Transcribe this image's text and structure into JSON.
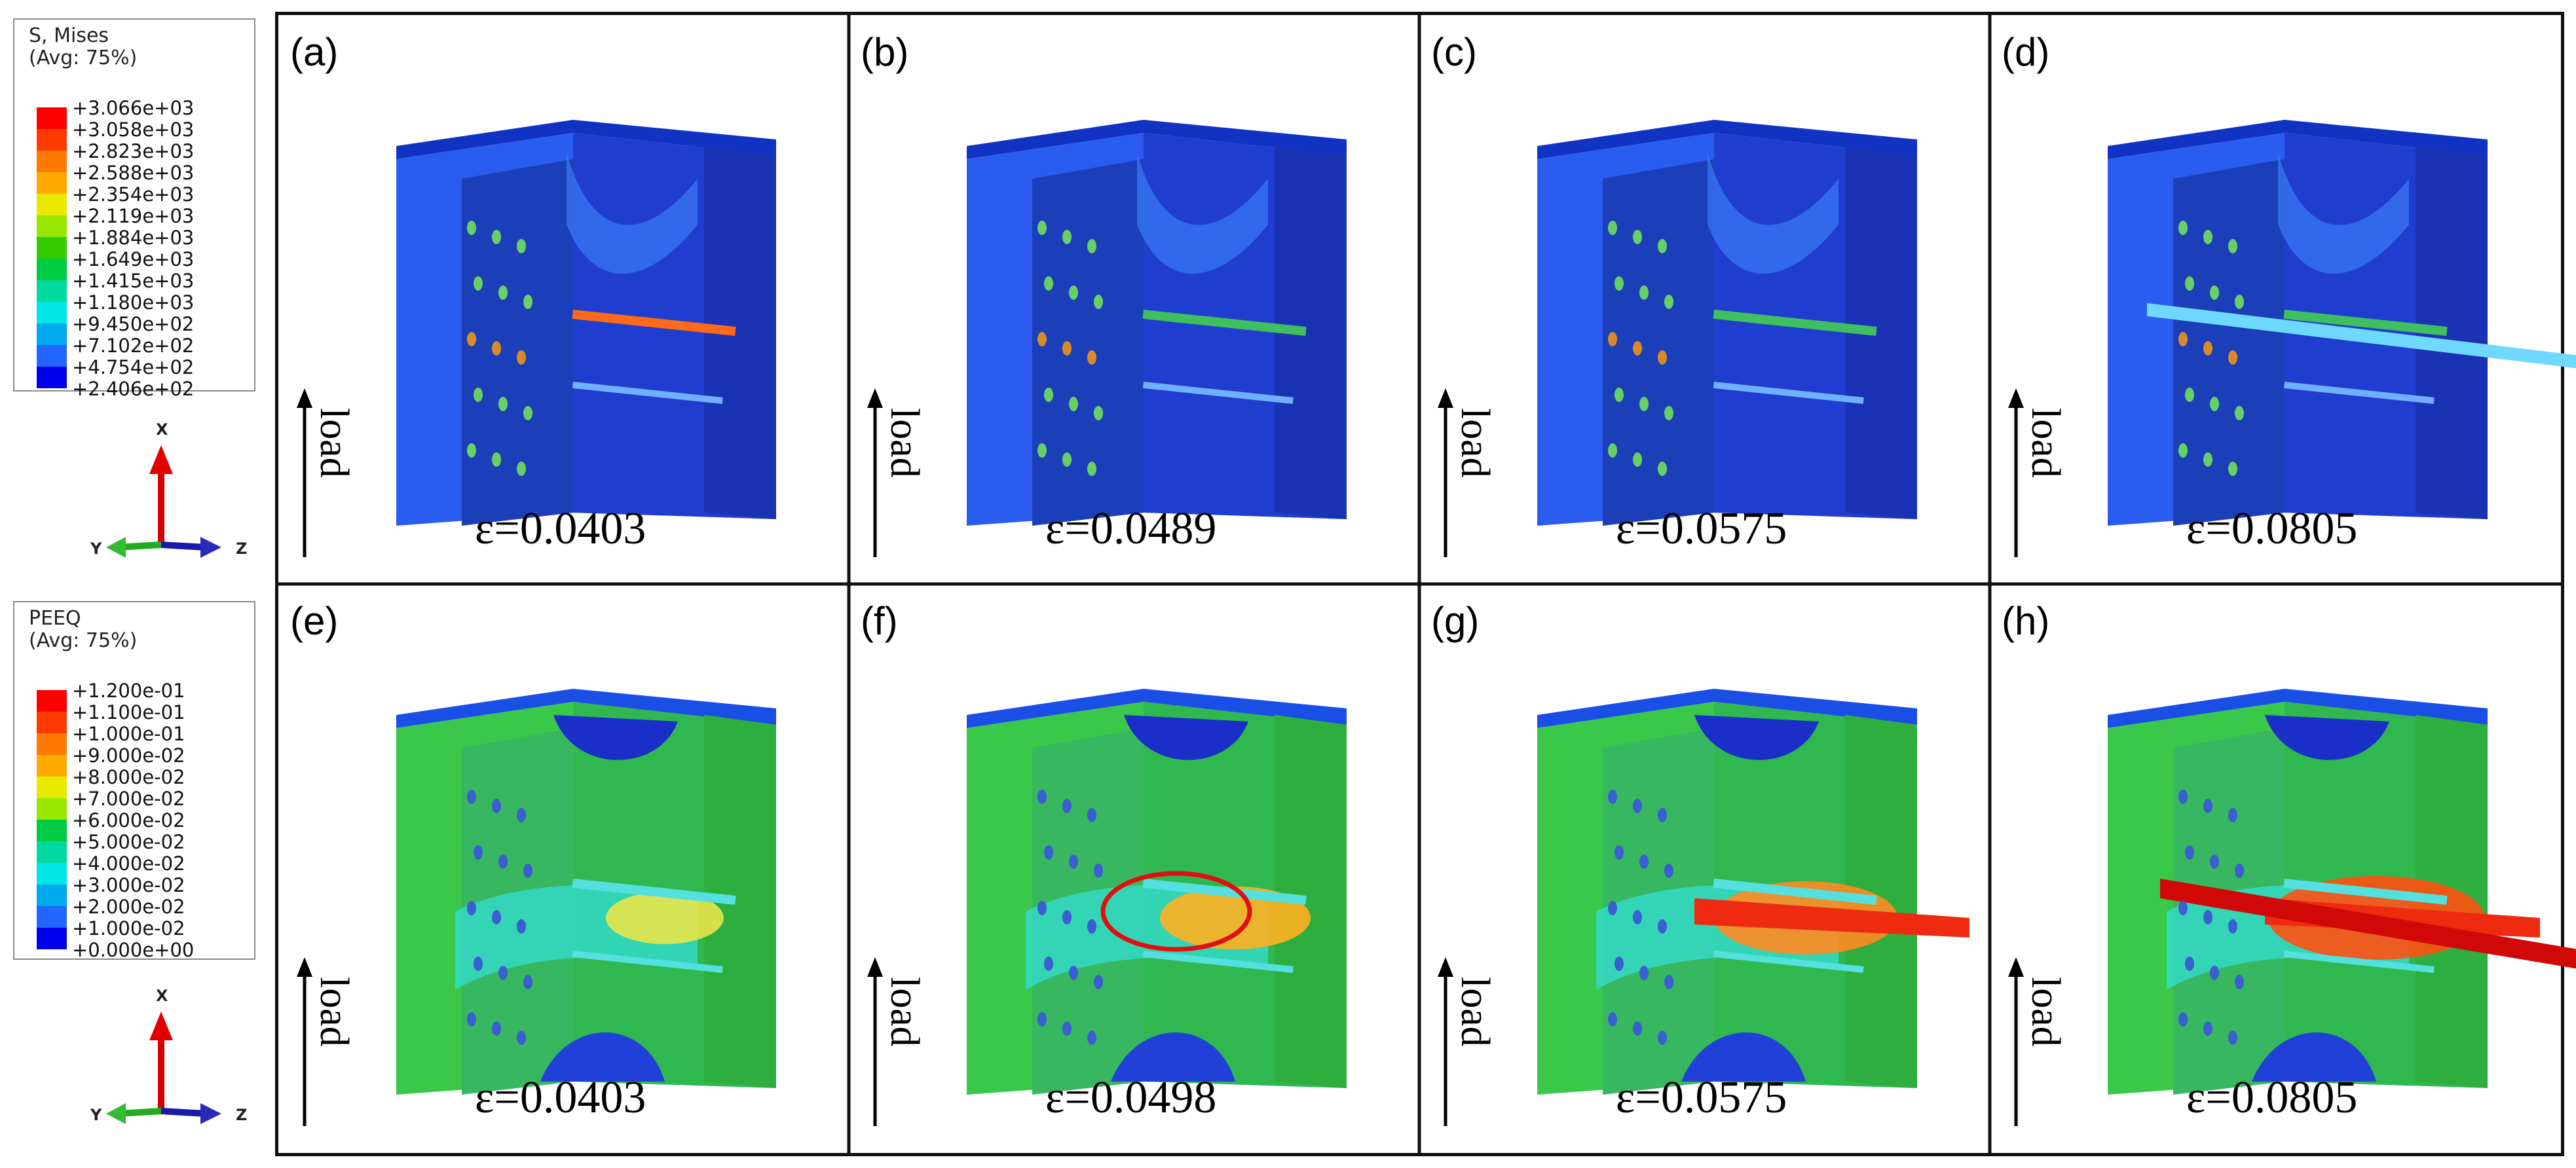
{
  "legend_mises": {
    "title1": "S, Mises",
    "title2": "(Avg: 75%)",
    "values": [
      "+3.066e+03",
      "+3.058e+03",
      "+2.823e+03",
      "+2.588e+03",
      "+2.354e+03",
      "+2.119e+03",
      "+1.884e+03",
      "+1.649e+03",
      "+1.415e+03",
      "+1.180e+03",
      "+9.450e+02",
      "+7.102e+02",
      "+4.754e+02",
      "+2.406e+02"
    ]
  },
  "legend_peeq": {
    "title1": "PEEQ",
    "title2": "(Avg: 75%)",
    "values": [
      "+1.200e-01",
      "+1.100e-01",
      "+1.000e-01",
      "+9.000e-02",
      "+8.000e-02",
      "+7.000e-02",
      "+6.000e-02",
      "+5.000e-02",
      "+4.000e-02",
      "+3.000e-02",
      "+2.000e-02",
      "+1.000e-02",
      "+0.000e+00"
    ]
  },
  "legend_colors": [
    "#ff0000",
    "#ff3a00",
    "#ff7a00",
    "#ffaa00",
    "#e8e800",
    "#99e600",
    "#33cc00",
    "#00cc44",
    "#00d9a0",
    "#00e5e5",
    "#00aaee",
    "#2266ff",
    "#0000ee"
  ],
  "triad": {
    "x": "X",
    "y": "Y",
    "z": "Z"
  },
  "panels": [
    {
      "letter": "(a)",
      "strain": "ε=0.0403",
      "load": "load"
    },
    {
      "letter": "(b)",
      "strain": "ε=0.0489",
      "load": "load"
    },
    {
      "letter": "(c)",
      "strain": "ε=0.0575",
      "load": "load"
    },
    {
      "letter": "(d)",
      "strain": "ε=0.0805",
      "load": "load"
    },
    {
      "letter": "(e)",
      "strain": "ε=0.0403",
      "load": "load"
    },
    {
      "letter": "(f)",
      "strain": "ε=0.0498",
      "load": "load"
    },
    {
      "letter": "(g)",
      "strain": "ε=0.0575",
      "load": "load"
    },
    {
      "letter": "(h)",
      "strain": "ε=0.0805",
      "load": "load"
    }
  ]
}
